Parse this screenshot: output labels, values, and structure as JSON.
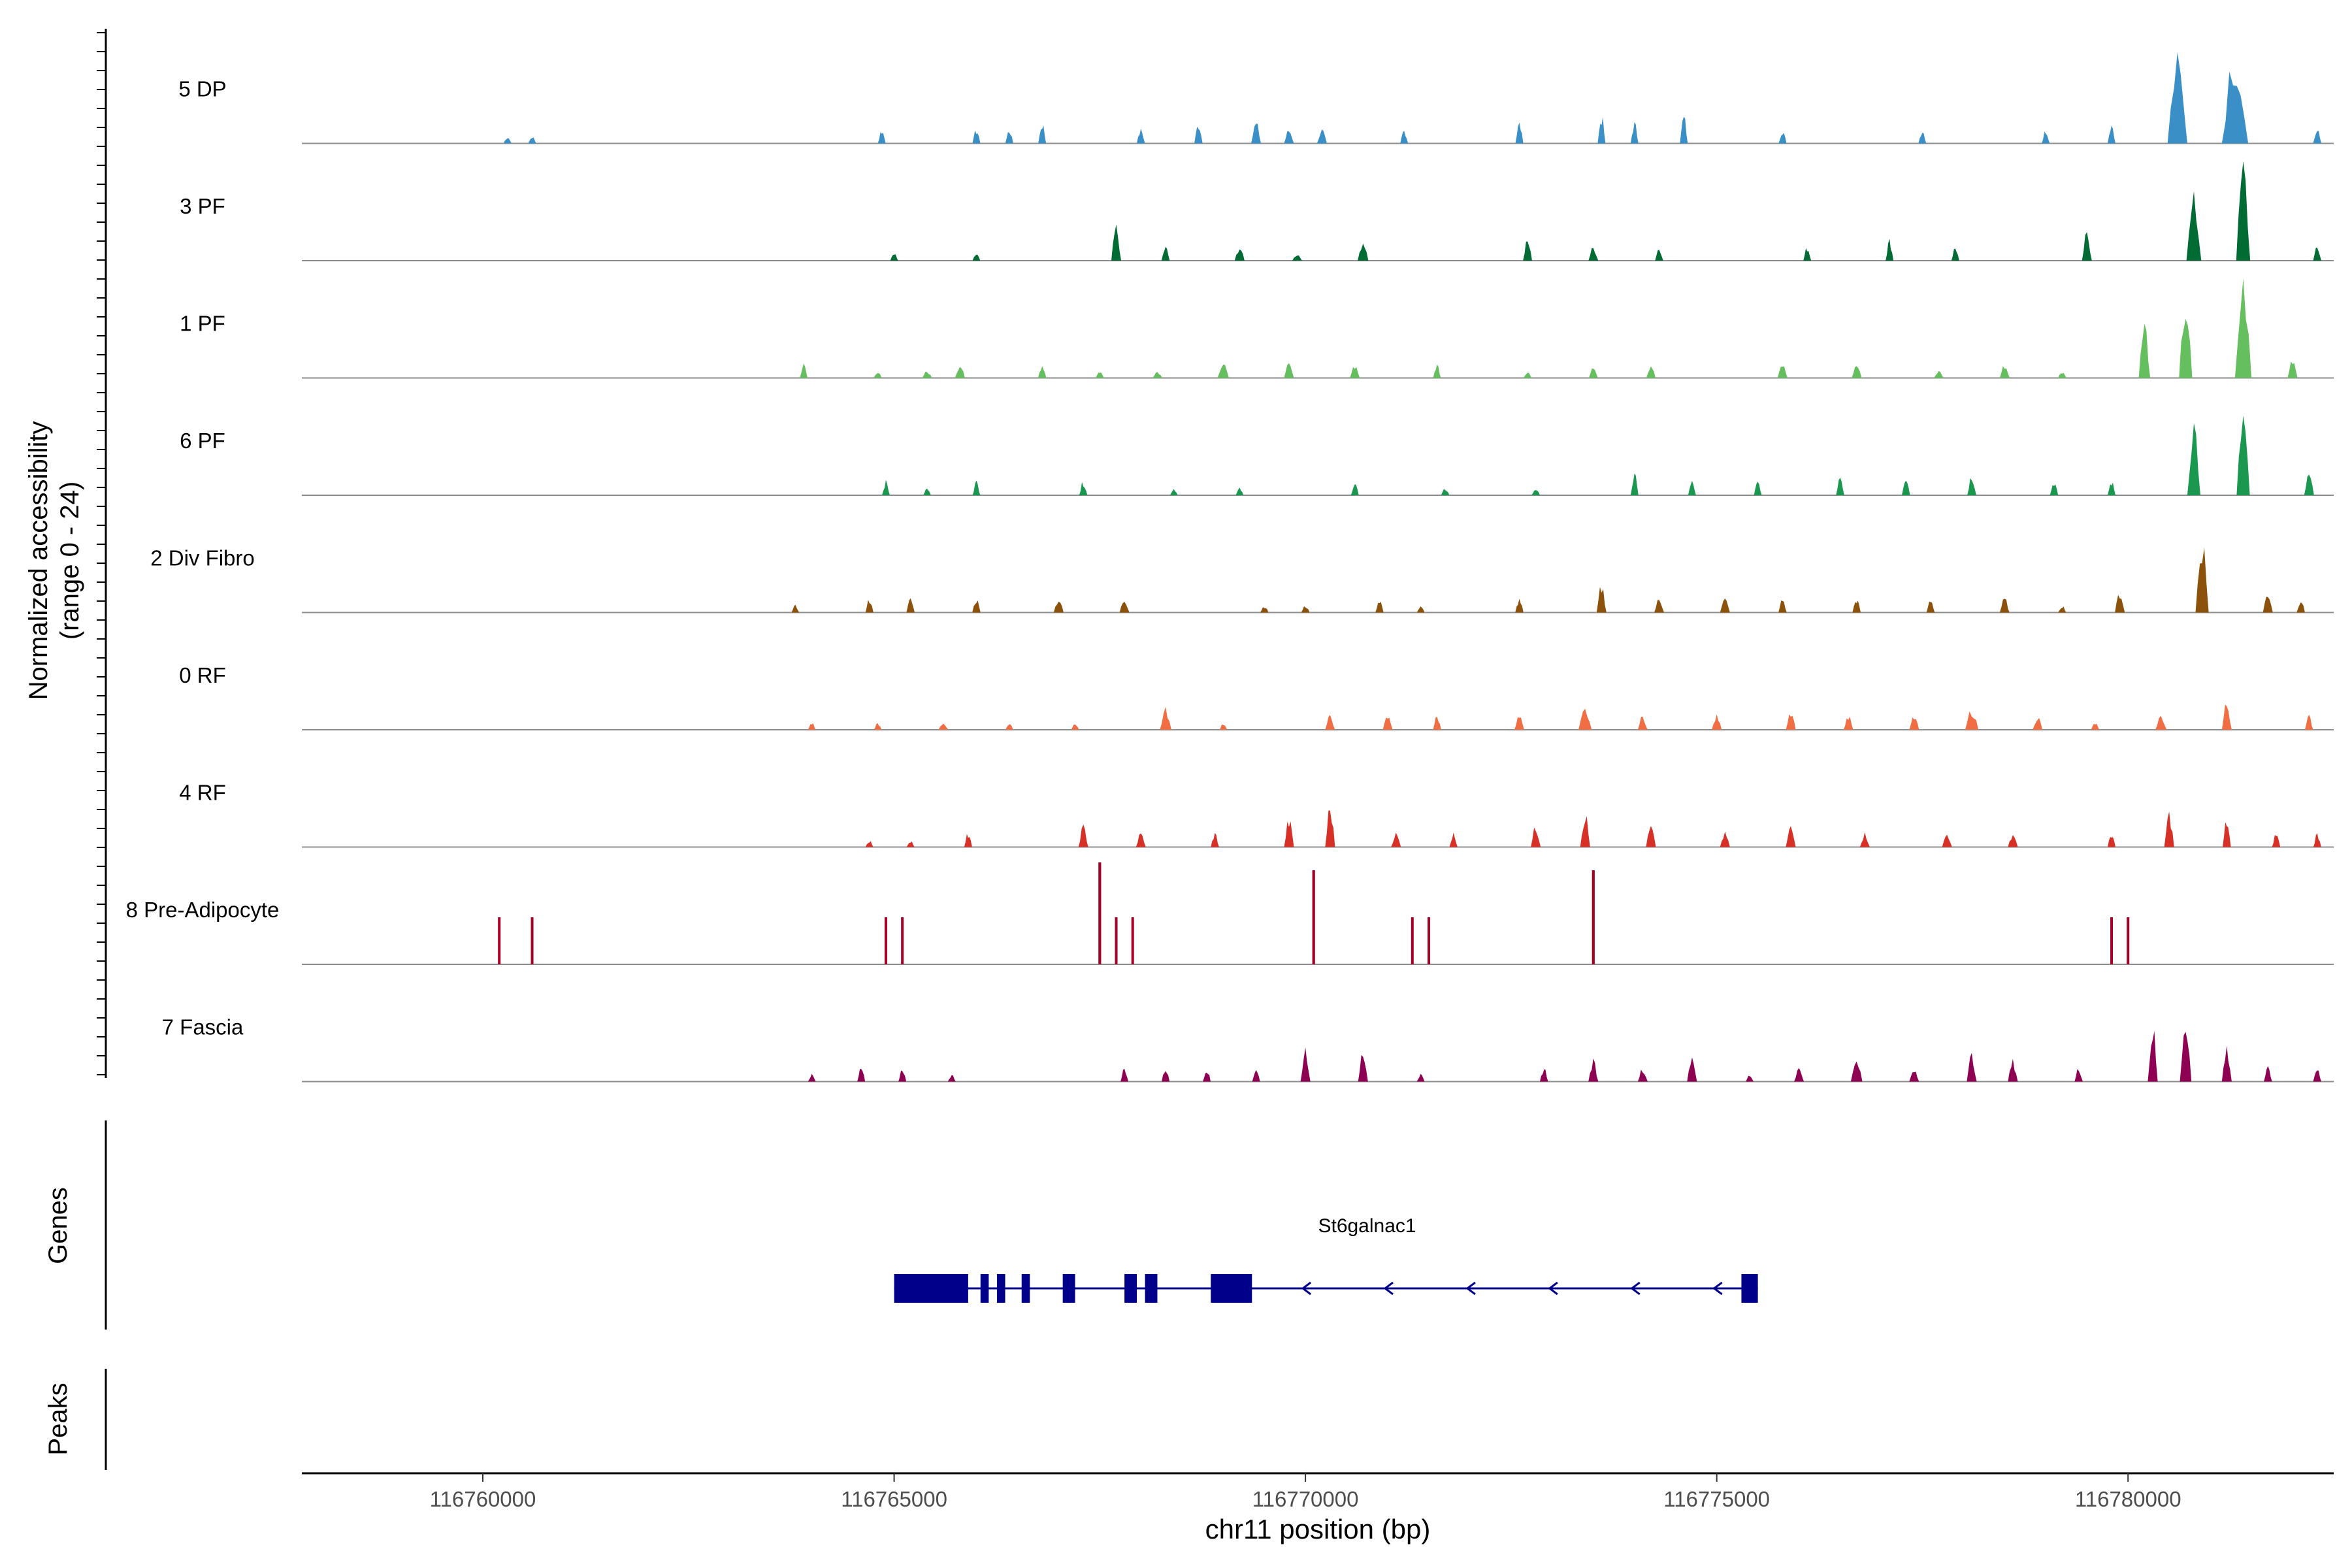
{
  "chart_data": {
    "type": "area",
    "ylabel_line1": "Normalized accessibility",
    "ylabel_line2": "(range 0 - 24)",
    "xlabel": "chr11 position (bp)",
    "xlim": [
      116757800,
      116782500
    ],
    "ylim": [
      0,
      24
    ],
    "x_ticks": [
      116760000,
      116765000,
      116770000,
      116775000,
      116780000
    ],
    "x_tick_labels": [
      "116760000",
      "116765000",
      "116770000",
      "116775000",
      "116780000"
    ],
    "tracks": [
      {
        "name": "5 DP",
        "color": "#3a8fc7",
        "peaks": [
          [
            116760300,
            1,
            25
          ],
          [
            116760600,
            1,
            25
          ],
          [
            116764850,
            2,
            30
          ],
          [
            116766000,
            2,
            35
          ],
          [
            116766400,
            2,
            35
          ],
          [
            116766800,
            3,
            35
          ],
          [
            116768000,
            2,
            50
          ],
          [
            116768700,
            3,
            50
          ],
          [
            116769400,
            3,
            60
          ],
          [
            116769800,
            2,
            60
          ],
          [
            116770200,
            2,
            60
          ],
          [
            116771200,
            2,
            45
          ],
          [
            116772600,
            3,
            45
          ],
          [
            116773600,
            4,
            45
          ],
          [
            116774000,
            3,
            40
          ],
          [
            116774600,
            4,
            35
          ],
          [
            116775800,
            2,
            30
          ],
          [
            116777500,
            2,
            40
          ],
          [
            116779000,
            2,
            45
          ],
          [
            116779800,
            3,
            40
          ],
          [
            116780600,
            12,
            120
          ],
          [
            116781300,
            13,
            160
          ],
          [
            116782300,
            2,
            50
          ]
        ]
      },
      {
        "name": "3 PF",
        "color": "#006b33",
        "peaks": [
          [
            116765000,
            1,
            40
          ],
          [
            116766000,
            1,
            35
          ],
          [
            116767700,
            5,
            60
          ],
          [
            116768300,
            2,
            50
          ],
          [
            116769200,
            2,
            60
          ],
          [
            116769900,
            1,
            60
          ],
          [
            116770700,
            3,
            65
          ],
          [
            116772700,
            3,
            55
          ],
          [
            116773500,
            2,
            60
          ],
          [
            116774300,
            2,
            50
          ],
          [
            116776100,
            2,
            40
          ],
          [
            116777100,
            3,
            45
          ],
          [
            116777900,
            2,
            45
          ],
          [
            116779500,
            4,
            60
          ],
          [
            116780800,
            9,
            90
          ],
          [
            116781400,
            14,
            85
          ],
          [
            116782300,
            2,
            50
          ]
        ]
      },
      {
        "name": "1 PF",
        "color": "#66bf5e",
        "peaks": [
          [
            116763900,
            2,
            40
          ],
          [
            116764800,
            1,
            40
          ],
          [
            116765400,
            1,
            60
          ],
          [
            116765800,
            2,
            60
          ],
          [
            116766800,
            2,
            50
          ],
          [
            116767500,
            1,
            50
          ],
          [
            116768200,
            1,
            60
          ],
          [
            116769000,
            2,
            70
          ],
          [
            116769800,
            2,
            60
          ],
          [
            116770600,
            2,
            60
          ],
          [
            116771600,
            2,
            40
          ],
          [
            116772700,
            1,
            40
          ],
          [
            116773500,
            2,
            55
          ],
          [
            116774200,
            2,
            55
          ],
          [
            116775800,
            2,
            60
          ],
          [
            116776700,
            2,
            60
          ],
          [
            116777700,
            1,
            60
          ],
          [
            116778500,
            2,
            60
          ],
          [
            116779200,
            1,
            50
          ],
          [
            116780200,
            8,
            70
          ],
          [
            116780700,
            11,
            80
          ],
          [
            116781400,
            14,
            100
          ],
          [
            116782000,
            3,
            60
          ]
        ]
      },
      {
        "name": "6 PF",
        "color": "#1a9850",
        "peaks": [
          [
            116764900,
            2,
            40
          ],
          [
            116765400,
            1,
            40
          ],
          [
            116766000,
            2,
            40
          ],
          [
            116767300,
            2,
            50
          ],
          [
            116768400,
            1,
            40
          ],
          [
            116769200,
            1,
            40
          ],
          [
            116770600,
            2,
            40
          ],
          [
            116771700,
            1,
            50
          ],
          [
            116772800,
            1,
            50
          ],
          [
            116774000,
            3,
            40
          ],
          [
            116774700,
            2,
            40
          ],
          [
            116775500,
            2,
            40
          ],
          [
            116776500,
            3,
            50
          ],
          [
            116777300,
            3,
            50
          ],
          [
            116778100,
            3,
            55
          ],
          [
            116779100,
            2,
            50
          ],
          [
            116779800,
            2,
            40
          ],
          [
            116780800,
            11,
            80
          ],
          [
            116781400,
            12,
            80
          ],
          [
            116782200,
            3,
            60
          ]
        ]
      },
      {
        "name": "2 Div Fibro",
        "color": "#8c510a",
        "peaks": [
          [
            116763800,
            1,
            20
          ],
          [
            116764700,
            2,
            40
          ],
          [
            116765200,
            2,
            50
          ],
          [
            116766000,
            2,
            50
          ],
          [
            116767000,
            2,
            60
          ],
          [
            116767800,
            2,
            60
          ],
          [
            116769500,
            1,
            50
          ],
          [
            116770000,
            1,
            50
          ],
          [
            116770900,
            2,
            50
          ],
          [
            116771400,
            1,
            40
          ],
          [
            116772600,
            2,
            50
          ],
          [
            116773600,
            4,
            60
          ],
          [
            116774300,
            2,
            60
          ],
          [
            116775100,
            2,
            60
          ],
          [
            116775800,
            2,
            50
          ],
          [
            116776700,
            2,
            50
          ],
          [
            116777600,
            2,
            50
          ],
          [
            116778500,
            2,
            60
          ],
          [
            116779200,
            1,
            50
          ],
          [
            116779900,
            3,
            60
          ],
          [
            116780900,
            11,
            80
          ],
          [
            116781700,
            3,
            60
          ],
          [
            116782100,
            2,
            50
          ]
        ]
      },
      {
        "name": "0 RF",
        "color": "#f16d44",
        "peaks": [
          [
            116764000,
            1,
            40
          ],
          [
            116764800,
            1,
            40
          ],
          [
            116765600,
            1,
            60
          ],
          [
            116766400,
            1,
            40
          ],
          [
            116767200,
            1,
            40
          ],
          [
            116768300,
            3,
            70
          ],
          [
            116769000,
            1,
            40
          ],
          [
            116770300,
            2,
            60
          ],
          [
            116771000,
            2,
            60
          ],
          [
            116771600,
            2,
            50
          ],
          [
            116772600,
            2,
            60
          ],
          [
            116773400,
            3,
            80
          ],
          [
            116774100,
            2,
            60
          ],
          [
            116775000,
            2,
            60
          ],
          [
            116775900,
            3,
            60
          ],
          [
            116776600,
            2,
            60
          ],
          [
            116777400,
            2,
            60
          ],
          [
            116778100,
            3,
            80
          ],
          [
            116778900,
            2,
            60
          ],
          [
            116779600,
            1,
            50
          ],
          [
            116780400,
            2,
            70
          ],
          [
            116781200,
            4,
            60
          ],
          [
            116782200,
            2,
            50
          ]
        ]
      },
      {
        "name": "4 RF",
        "color": "#d73027",
        "peaks": [
          [
            116764700,
            1,
            40
          ],
          [
            116765200,
            1,
            40
          ],
          [
            116765900,
            2,
            40
          ],
          [
            116767300,
            3,
            60
          ],
          [
            116768000,
            2,
            60
          ],
          [
            116768900,
            2,
            50
          ],
          [
            116769800,
            4,
            60
          ],
          [
            116770300,
            6,
            60
          ],
          [
            116771100,
            2,
            60
          ],
          [
            116771800,
            2,
            50
          ],
          [
            116772800,
            3,
            60
          ],
          [
            116773400,
            5,
            60
          ],
          [
            116774200,
            3,
            60
          ],
          [
            116775100,
            2,
            60
          ],
          [
            116775900,
            3,
            60
          ],
          [
            116776800,
            2,
            60
          ],
          [
            116777800,
            2,
            60
          ],
          [
            116778600,
            2,
            60
          ],
          [
            116779800,
            2,
            40
          ],
          [
            116780500,
            5,
            60
          ],
          [
            116781200,
            4,
            50
          ],
          [
            116781800,
            2,
            50
          ],
          [
            116782300,
            2,
            40
          ]
        ]
      },
      {
        "name": "8 Pre-Adipocyte",
        "color": "#a50026",
        "peaks": [
          [
            116760200,
            6,
            40
          ],
          [
            116760600,
            6,
            40
          ],
          [
            116764900,
            6,
            40
          ],
          [
            116765100,
            6,
            40
          ],
          [
            116767500,
            13,
            50
          ],
          [
            116767700,
            6,
            40
          ],
          [
            116767900,
            6,
            40
          ],
          [
            116770100,
            12,
            50
          ],
          [
            116771300,
            6,
            40
          ],
          [
            116771500,
            6,
            40
          ],
          [
            116773500,
            12,
            50
          ],
          [
            116779800,
            6,
            40
          ],
          [
            116780000,
            6,
            40
          ]
        ]
      },
      {
        "name": "7 Fascia",
        "color": "#8e0152",
        "peaks": [
          [
            116764000,
            1,
            30
          ],
          [
            116764600,
            2,
            40
          ],
          [
            116765100,
            2,
            40
          ],
          [
            116765700,
            1,
            30
          ],
          [
            116767800,
            2,
            30
          ],
          [
            116768300,
            2,
            40
          ],
          [
            116768800,
            2,
            40
          ],
          [
            116769400,
            2,
            40
          ],
          [
            116770000,
            5,
            60
          ],
          [
            116770700,
            5,
            60
          ],
          [
            116771400,
            1,
            30
          ],
          [
            116772900,
            2,
            50
          ],
          [
            116773500,
            3,
            60
          ],
          [
            116774100,
            2,
            60
          ],
          [
            116774700,
            4,
            60
          ],
          [
            116775400,
            1,
            30
          ],
          [
            116776000,
            2,
            60
          ],
          [
            116776700,
            3,
            70
          ],
          [
            116777400,
            2,
            60
          ],
          [
            116778100,
            4,
            60
          ],
          [
            116778600,
            3,
            60
          ],
          [
            116779400,
            2,
            50
          ],
          [
            116780300,
            8,
            60
          ],
          [
            116780700,
            10,
            70
          ],
          [
            116781200,
            5,
            60
          ],
          [
            116781700,
            2,
            50
          ],
          [
            116782300,
            2,
            50
          ]
        ]
      }
    ],
    "genes_label": "Genes",
    "peaks_label": "Peaks",
    "gene": {
      "name": "St6galnac1",
      "color": "#00008b",
      "start": 116765000,
      "end": 116775500,
      "exons": [
        [
          116765000,
          116765900
        ],
        [
          116766050,
          116766150
        ],
        [
          116766250,
          116766350
        ],
        [
          116766550,
          116766650
        ],
        [
          116767050,
          116767200
        ],
        [
          116767800,
          116767950
        ],
        [
          116768050,
          116768200
        ],
        [
          116768850,
          116769350
        ],
        [
          116775300,
          116775500
        ]
      ],
      "arrows": [
        116770000,
        116771000,
        116772000,
        116773000,
        116774000,
        116775000
      ]
    }
  }
}
